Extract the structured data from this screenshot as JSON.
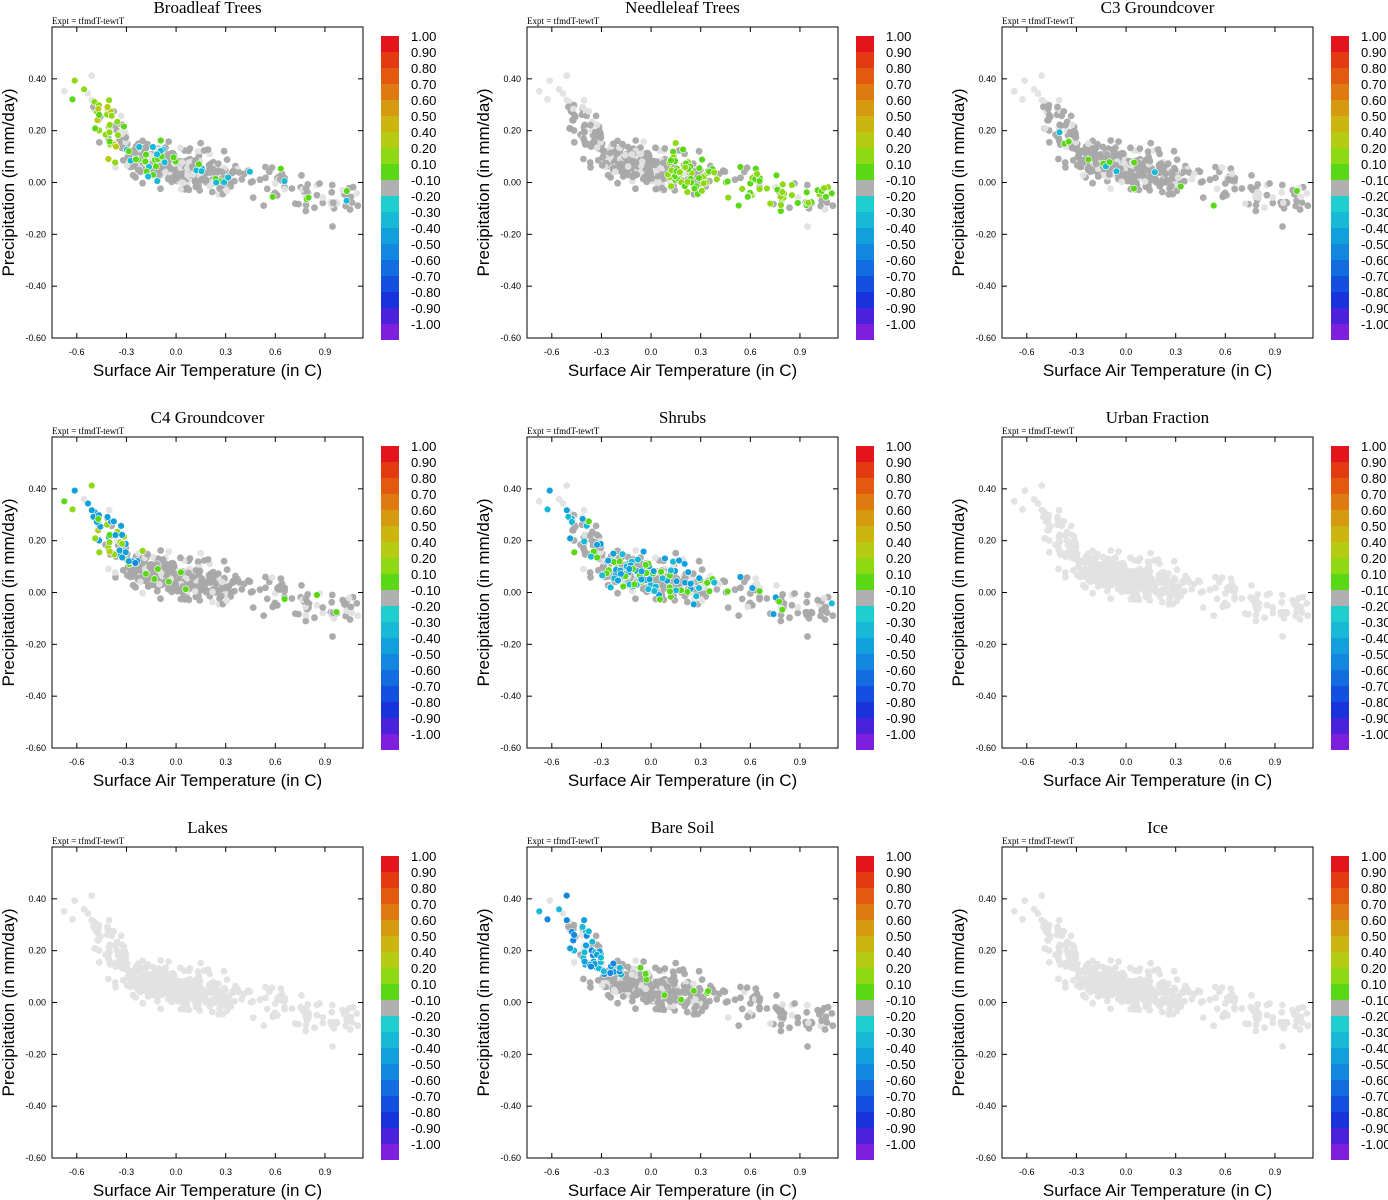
{
  "figure": {
    "expt_label": "Expt = tfmdT-tewtT",
    "xlabel": "Surface Air Temperature (in C)",
    "ylabel": "Precipitation (in mm/day)"
  },
  "chart_data": [
    {
      "type": "scatter",
      "title": "Broadleaf Trees",
      "xlim": [
        -0.75,
        1.13
      ],
      "ylim": [
        -0.6,
        0.6
      ],
      "xticks": [
        "-0.6",
        "-0.3",
        "0.0",
        "0.3",
        "0.6",
        "0.9"
      ],
      "yticks": [
        "0.40",
        "0.20",
        "0.00",
        "-0.20",
        "-0.40",
        "-0.60"
      ],
      "highlight": "mixed_pos"
    },
    {
      "type": "scatter",
      "title": "Needleleaf Trees",
      "xlim": [
        -0.75,
        1.13
      ],
      "ylim": [
        -0.6,
        0.6
      ],
      "xticks": [
        "-0.6",
        "-0.3",
        "0.0",
        "0.3",
        "0.6",
        "0.9"
      ],
      "yticks": [
        "0.40",
        "0.20",
        "0.00",
        "-0.20",
        "-0.40",
        "-0.60"
      ],
      "highlight": "warm_pos"
    },
    {
      "type": "scatter",
      "title": "C3 Groundcover",
      "xlim": [
        -0.75,
        1.13
      ],
      "ylim": [
        -0.6,
        0.6
      ],
      "xticks": [
        "-0.6",
        "-0.3",
        "0.0",
        "0.3",
        "0.6",
        "0.9"
      ],
      "yticks": [
        "0.40",
        "0.20",
        "0.00",
        "-0.20",
        "-0.40",
        "-0.60"
      ],
      "highlight": "few"
    },
    {
      "type": "scatter",
      "title": "C4 Groundcover",
      "xlim": [
        -0.75,
        1.13
      ],
      "ylim": [
        -0.6,
        0.6
      ],
      "xticks": [
        "-0.6",
        "-0.3",
        "0.0",
        "0.3",
        "0.6",
        "0.9"
      ],
      "yticks": [
        "0.40",
        "0.20",
        "0.00",
        "-0.20",
        "-0.40",
        "-0.60"
      ],
      "highlight": "cold_mixed"
    },
    {
      "type": "scatter",
      "title": "Shrubs",
      "xlim": [
        -0.75,
        1.13
      ],
      "ylim": [
        -0.6,
        0.6
      ],
      "xticks": [
        "-0.6",
        "-0.3",
        "0.0",
        "0.3",
        "0.6",
        "0.9"
      ],
      "yticks": [
        "0.40",
        "0.20",
        "0.00",
        "-0.20",
        "-0.40",
        "-0.60"
      ],
      "highlight": "neg_spread"
    },
    {
      "type": "scatter",
      "title": "Urban Fraction",
      "xlim": [
        -0.75,
        1.13
      ],
      "ylim": [
        -0.6,
        0.6
      ],
      "xticks": [
        "-0.6",
        "-0.3",
        "0.0",
        "0.3",
        "0.6",
        "0.9"
      ],
      "yticks": [
        "0.40",
        "0.20",
        "0.00",
        "-0.20",
        "-0.40",
        "-0.60"
      ],
      "highlight": "none"
    },
    {
      "type": "scatter",
      "title": "Lakes",
      "xlim": [
        -0.75,
        1.13
      ],
      "ylim": [
        -0.6,
        0.6
      ],
      "xticks": [
        "-0.6",
        "-0.3",
        "0.0",
        "0.3",
        "0.6",
        "0.9"
      ],
      "yticks": [
        "0.40",
        "0.20",
        "0.00",
        "-0.20",
        "-0.40",
        "-0.60"
      ],
      "highlight": "none"
    },
    {
      "type": "scatter",
      "title": "Bare Soil",
      "xlim": [
        -0.75,
        1.13
      ],
      "ylim": [
        -0.6,
        0.6
      ],
      "xticks": [
        "-0.6",
        "-0.3",
        "0.0",
        "0.3",
        "0.6",
        "0.9"
      ],
      "yticks": [
        "0.40",
        "0.20",
        "0.00",
        "-0.20",
        "-0.40",
        "-0.60"
      ],
      "highlight": "cold_neg"
    },
    {
      "type": "scatter",
      "title": "Ice",
      "xlim": [
        -0.75,
        1.13
      ],
      "ylim": [
        -0.6,
        0.6
      ],
      "xticks": [
        "-0.6",
        "-0.3",
        "0.0",
        "0.3",
        "0.6",
        "0.9"
      ],
      "yticks": [
        "0.40",
        "0.20",
        "0.00",
        "-0.20",
        "-0.40",
        "-0.60"
      ],
      "highlight": "none"
    }
  ],
  "colorbar": {
    "labels": [
      "1.00",
      "0.90",
      "0.80",
      "0.70",
      "0.60",
      "0.50",
      "0.40",
      "0.20",
      "0.10",
      "-0.10",
      "-0.20",
      "-0.30",
      "-0.40",
      "-0.50",
      "-0.60",
      "-0.70",
      "-0.80",
      "-0.90",
      "-1.00"
    ],
    "colors": [
      "#e3141c",
      "#e43a12",
      "#e2590f",
      "#de7a10",
      "#d69a10",
      "#cdb50f",
      "#b6cc12",
      "#8ed914",
      "#5ad815",
      "#b0b0b0",
      "#1fcfcf",
      "#17b9d6",
      "#12a0dc",
      "#1386df",
      "#136ce0",
      "#1450e0",
      "#1833dc",
      "#4b22dc",
      "#7f1fde"
    ]
  },
  "colors": {
    "background_point": "#e2e2e2",
    "neutral_point": "#a8a8a8",
    "axis": "#000000"
  }
}
